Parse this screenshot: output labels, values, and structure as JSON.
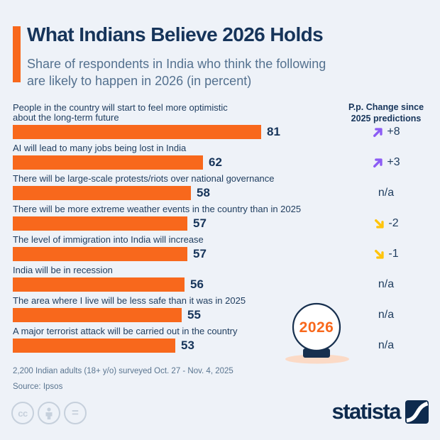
{
  "header": {
    "title": "What Indians Believe 2026 Holds",
    "subtitle": "Share of respondents in India who think the following\nare likely to happen in 2026 (in percent)",
    "accent_color": "#F8681C"
  },
  "chart_data": {
    "type": "bar",
    "orientation": "horizontal",
    "unit": "percent",
    "value_range": [
      0,
      81
    ],
    "bar_color": "#F8681C",
    "trend_up_color": "#8C5CF5",
    "trend_down_color": "#FFC40C",
    "change_column_header": "P.p. Change since\n2025 predictions",
    "rows": [
      {
        "label": "People in the country will start to feel more optimistic\nabout the long-term future",
        "value": 81,
        "change": "+8",
        "trend": "up"
      },
      {
        "label": "AI will lead to many jobs being lost in India",
        "value": 62,
        "change": "+3",
        "trend": "up"
      },
      {
        "label": "There will be large-scale protests/riots over national governance",
        "value": 58,
        "change": "n/a",
        "trend": "none"
      },
      {
        "label": "There will be more extreme weather events in the country than in 2025",
        "value": 57,
        "change": "-2",
        "trend": "down"
      },
      {
        "label": "The level of immigration into India will increase",
        "value": 57,
        "change": "-1",
        "trend": "down"
      },
      {
        "label": "India will be in recession",
        "value": 56,
        "change": "n/a",
        "trend": "none"
      },
      {
        "label": "The area where I live will be less safe than it was in 2025",
        "value": 55,
        "change": "n/a",
        "trend": "none"
      },
      {
        "label": "A major terrorist attack will be carried out in the country",
        "value": 53,
        "change": "n/a",
        "trend": "none"
      }
    ]
  },
  "illustration": {
    "crystal_ball_year": "2026"
  },
  "footer": {
    "note_line1": "2,200 Indian adults (18+ y/o) surveyed Oct. 27 - Nov. 4, 2025",
    "note_line2": "Source: Ipsos",
    "brand": "statista"
  }
}
